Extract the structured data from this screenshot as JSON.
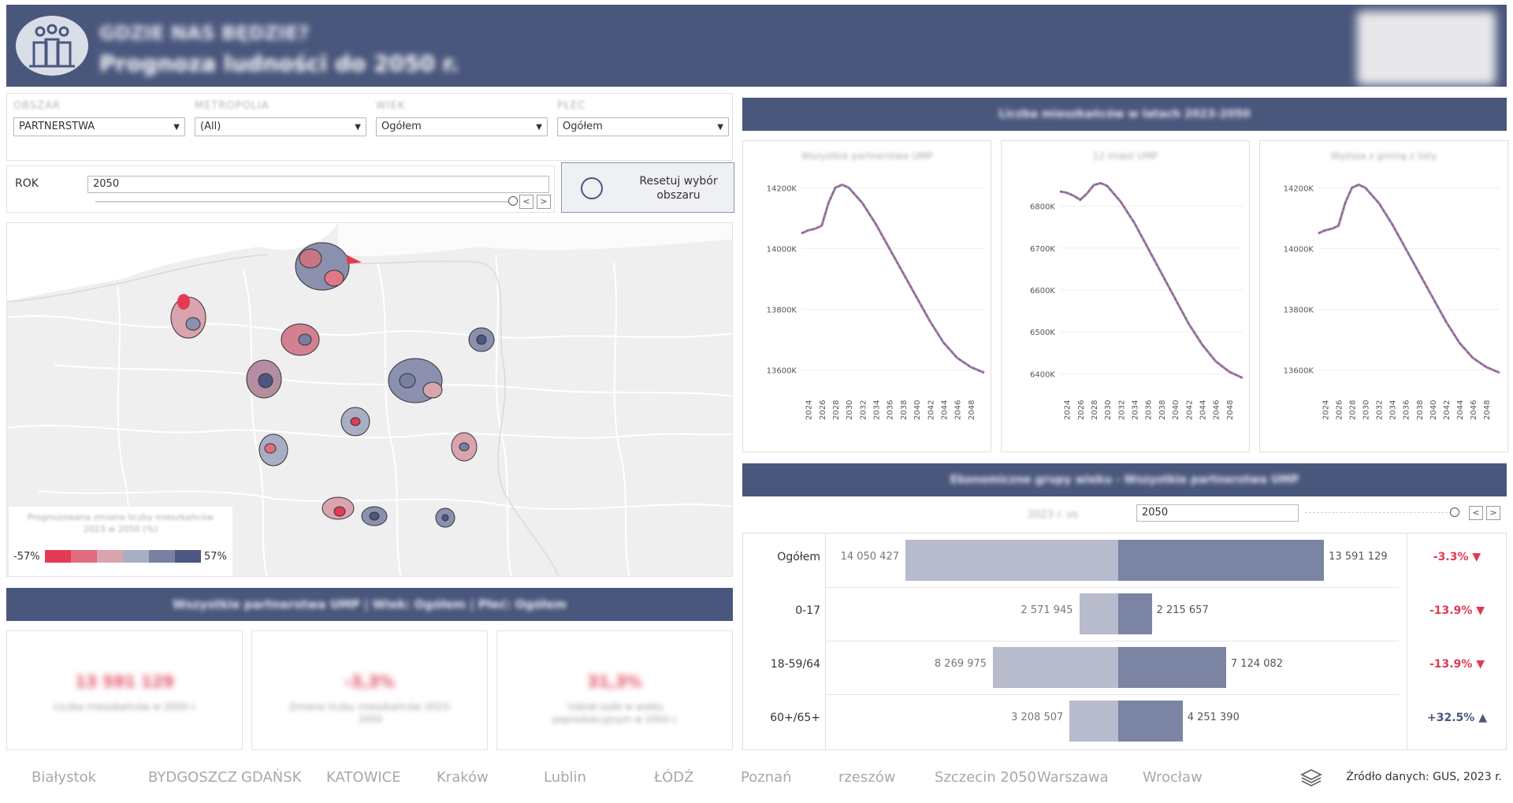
{
  "header": {
    "title_line1": "GDZIE NAS BĘDZIE?",
    "title_line2": "Prognoza ludności do 2050 r.",
    "icon": "people-icon"
  },
  "filters": [
    {
      "label": "OBSZAR",
      "value": "PARTNERSTWA"
    },
    {
      "label": "METROPOLIA",
      "value": "(All)"
    },
    {
      "label": "WIEK",
      "value": "Ogółem"
    },
    {
      "label": "PŁEĆ",
      "value": "Ogółem"
    }
  ],
  "rok": {
    "label": "ROK",
    "value": "2050",
    "prev": "<",
    "next": ">"
  },
  "reset": {
    "label": "Resetuj wybór obszaru"
  },
  "map_legend": {
    "title": "Prognozowana zmiana liczby mieszkańców 2023 w 2050 (%)",
    "min": "-57%",
    "max": "57%",
    "colors": [
      "#e33b54",
      "#e06c7e",
      "#d9a4ae",
      "#a8aec4",
      "#7880a2",
      "#4c5680"
    ]
  },
  "summary": {
    "text": "Wszystkie partnerstwa UMP | Wiek: Ogółem | Płeć: Ogółem"
  },
  "kpis": [
    {
      "value": "13 591 129",
      "desc": "Liczba mieszkańców w 2050 r."
    },
    {
      "value": "-3,3%",
      "desc": "Zmiana liczby mieszkańców 2023-2050"
    },
    {
      "value": "31,3%",
      "desc": "Udział osób w wieku poprodukcyjnym w 2050 r."
    }
  ],
  "line_section": {
    "title": "Liczba mieszkańców w latach 2023-2050"
  },
  "line_charts": [
    {
      "title": "Wszystkie partnerstwa UMP",
      "ticks": [
        "13600K",
        "13800K",
        "14000K",
        "14200K"
      ]
    },
    {
      "title": "12 miast UMP",
      "ticks": [
        "6400K",
        "6500K",
        "6600K",
        "6700K",
        "6800K"
      ]
    },
    {
      "title": "Wyższa z gminą z listy",
      "ticks": [
        "13600K",
        "13800K",
        "14000K",
        "14200K"
      ]
    }
  ],
  "chart_data": [
    {
      "type": "line",
      "title": "",
      "xlabel": "",
      "ylabel": "",
      "x": [
        2023,
        2024,
        2025,
        2026,
        2027,
        2028,
        2029,
        2030,
        2032,
        2034,
        2036,
        2038,
        2040,
        2042,
        2044,
        2046,
        2048,
        2050
      ],
      "series": [
        {
          "values": [
            14050,
            14060,
            14065,
            14075,
            14150,
            14200,
            14210,
            14200,
            14150,
            14080,
            14000,
            13920,
            13840,
            13760,
            13690,
            13640,
            13610,
            13591
          ]
        }
      ],
      "ylim": [
        13560,
        14250
      ]
    },
    {
      "type": "line",
      "title": "",
      "xlabel": "",
      "ylabel": "",
      "x": [
        2023,
        2024,
        2025,
        2026,
        2027,
        2028,
        2029,
        2030,
        2032,
        2034,
        2036,
        2038,
        2040,
        2042,
        2044,
        2046,
        2048,
        2050
      ],
      "series": [
        {
          "values": [
            6835,
            6832,
            6825,
            6815,
            6830,
            6850,
            6855,
            6848,
            6810,
            6760,
            6700,
            6640,
            6580,
            6520,
            6470,
            6430,
            6405,
            6390
          ]
        }
      ],
      "ylim": [
        6380,
        6880
      ]
    },
    {
      "type": "line",
      "title": "",
      "xlabel": "",
      "ylabel": "",
      "x": [
        2023,
        2024,
        2025,
        2026,
        2027,
        2028,
        2029,
        2030,
        2032,
        2034,
        2036,
        2038,
        2040,
        2042,
        2044,
        2046,
        2048,
        2050
      ],
      "series": [
        {
          "values": [
            14050,
            14060,
            14065,
            14075,
            14150,
            14200,
            14210,
            14200,
            14150,
            14080,
            14000,
            13920,
            13840,
            13760,
            13690,
            13640,
            13610,
            13591
          ]
        }
      ],
      "ylim": [
        13560,
        14250
      ]
    },
    {
      "type": "bar",
      "title": "",
      "xlabel": "",
      "ylabel": "",
      "categories": [
        "Ogółem",
        "0-17",
        "18-59/64",
        "60+/65+"
      ],
      "series": [
        {
          "values": [
            14050427,
            2571945,
            8269975,
            3208507
          ]
        },
        {
          "values": [
            13591129,
            2215657,
            7124082,
            4251390
          ]
        }
      ]
    }
  ],
  "x_ticks": [
    "2024",
    "2026",
    "2028",
    "2030",
    "2032",
    "2034",
    "2036",
    "2038",
    "2040",
    "2042",
    "2044",
    "2046",
    "2048"
  ],
  "bar_section": {
    "title": "Ekonomiczne grupy wieku - Wszystkie partnerstwa UMP",
    "base": "2023 r. vs",
    "year": "2050"
  },
  "bar_rows": [
    {
      "cat": "Ogółem",
      "left": "14 050 427",
      "right": "13 591 129",
      "change": "-3.3%",
      "dir": "down"
    },
    {
      "cat": "0-17",
      "left": "2 571 945",
      "right": "2 215 657",
      "change": "-13.9%",
      "dir": "down"
    },
    {
      "cat": "18-59/64",
      "left": "8 269 975",
      "right": "7 124 082",
      "change": "-13.9%",
      "dir": "down"
    },
    {
      "cat": "60+/65+",
      "left": "3 208 507",
      "right": "4 251 390",
      "change": "+32.5%",
      "dir": "up"
    }
  ],
  "logos": [
    "Białystok",
    "BYDGOSZCZ",
    "GDAŃSK",
    "KATOWICE",
    "Kraków",
    "Lublin",
    "ŁÓDŹ",
    "Poznań",
    "rzeszów",
    "Szczecin 2050",
    "Warszawa",
    "Wrocław"
  ],
  "source": "Źródło danych: GUS, 2023 r.",
  "colors": {
    "header": "#4a577d",
    "down": "#e03a52",
    "up": "#4a577d",
    "line_red": "#d84860",
    "line_blue": "#7a8ab8"
  }
}
